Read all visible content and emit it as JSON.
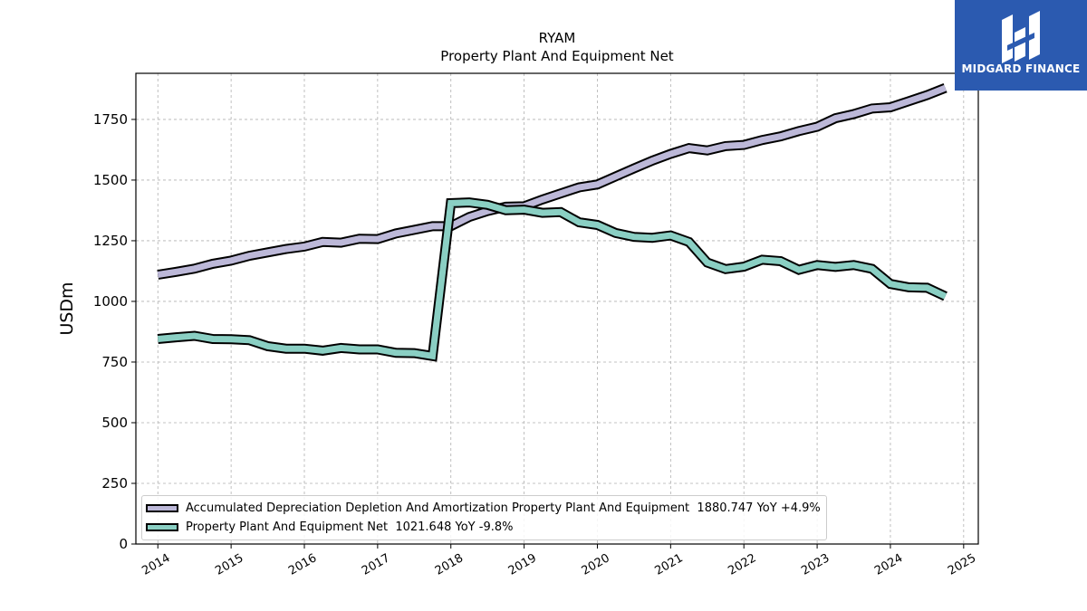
{
  "header": {
    "ticker": "RYAM",
    "subtitle": "Property Plant And Equipment Net"
  },
  "logo": {
    "text": "MIDGARD FINANCE",
    "background": "#2b5ab0"
  },
  "chart_data": {
    "type": "line",
    "title": "RYAM",
    "subtitle": "Property Plant And Equipment Net",
    "xlabel": "",
    "ylabel": "USDm",
    "xlim": [
      2013.7,
      2025.2
    ],
    "ylim": [
      0,
      1940
    ],
    "x_ticks": [
      "2014",
      "2015",
      "2016",
      "2017",
      "2018",
      "2019",
      "2020",
      "2021",
      "2022",
      "2023",
      "2024",
      "2025"
    ],
    "y_ticks": [
      "0",
      "250",
      "500",
      "750",
      "1000",
      "1250",
      "1500",
      "1750"
    ],
    "grid": true,
    "legend_position": "bottom-left",
    "x": [
      2014.0,
      2014.25,
      2014.5,
      2014.75,
      2015.0,
      2015.25,
      2015.5,
      2015.75,
      2016.0,
      2016.25,
      2016.5,
      2016.75,
      2017.0,
      2017.25,
      2017.5,
      2017.75,
      2018.0,
      2018.25,
      2018.5,
      2018.75,
      2019.0,
      2019.25,
      2019.5,
      2019.75,
      2020.0,
      2020.25,
      2020.5,
      2020.75,
      2021.0,
      2021.25,
      2021.5,
      2021.75,
      2022.0,
      2022.25,
      2022.5,
      2022.75,
      2023.0,
      2023.25,
      2023.5,
      2023.75,
      2024.0,
      2024.25,
      2024.5,
      2024.75
    ],
    "series": [
      {
        "name": "Accumulated Depreciation Depletion And Amortization Property Plant And Equipment",
        "legend_value": "1880.747 YoY +4.9%",
        "color": "#bcb8d8",
        "values": [
          1110,
          1122,
          1135,
          1155,
          1168,
          1188,
          1202,
          1216,
          1226,
          1245,
          1242,
          1258,
          1257,
          1280,
          1295,
          1310,
          1310,
          1348,
          1372,
          1390,
          1392,
          1420,
          1445,
          1470,
          1482,
          1515,
          1548,
          1580,
          1608,
          1632,
          1622,
          1640,
          1645,
          1665,
          1680,
          1702,
          1720,
          1755,
          1772,
          1795,
          1800,
          1825,
          1850,
          1880
        ]
      },
      {
        "name": "Property Plant And Equipment Net",
        "legend_value": "1021.648 YoY -9.8%",
        "color": "#8acfc3",
        "values": [
          845,
          852,
          858,
          845,
          844,
          840,
          815,
          805,
          805,
          797,
          808,
          802,
          802,
          788,
          787,
          775,
          1405,
          1408,
          1398,
          1376,
          1378,
          1365,
          1368,
          1326,
          1315,
          1282,
          1266,
          1262,
          1272,
          1245,
          1160,
          1133,
          1143,
          1172,
          1166,
          1130,
          1150,
          1142,
          1150,
          1134,
          1072,
          1058,
          1056,
          1021
        ]
      }
    ]
  }
}
